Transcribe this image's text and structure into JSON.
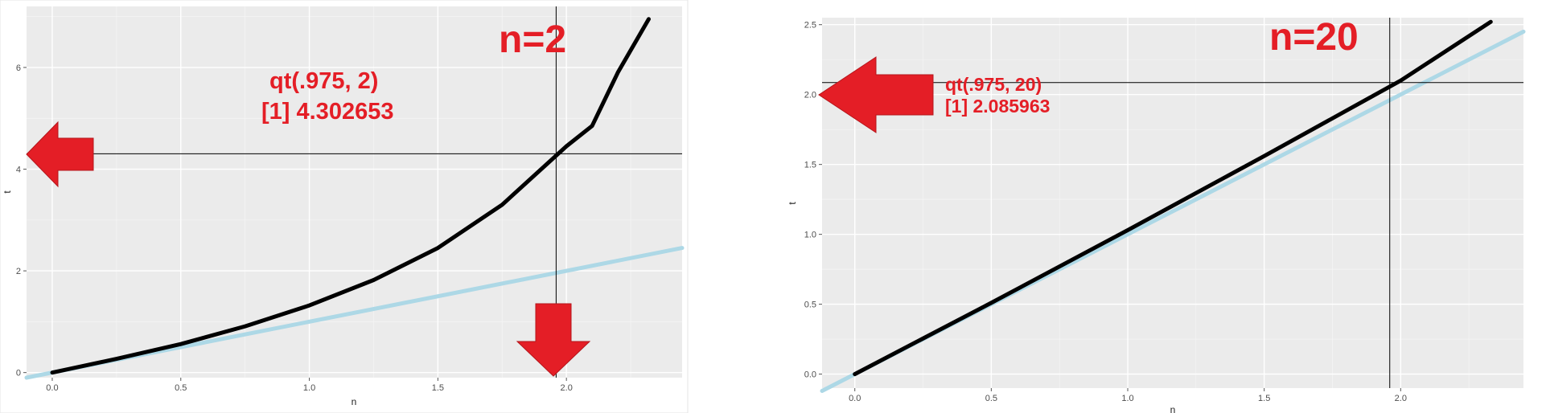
{
  "chart_data": [
    {
      "type": "line",
      "title": "n=2",
      "xlabel": "n",
      "ylabel": "t",
      "xlim": [
        -0.1,
        2.45
      ],
      "ylim": [
        -0.1,
        7.2
      ],
      "x_ticks": [
        0.0,
        0.5,
        1.0,
        1.5,
        2.0
      ],
      "x_tick_labels": [
        "0.0",
        "0.5",
        "1.0",
        "1.5",
        "2.0"
      ],
      "y_ticks": [
        0,
        2,
        4,
        6
      ],
      "y_tick_labels": [
        "0",
        "2",
        "4",
        "6"
      ],
      "grid": true,
      "series": [
        {
          "color": "#000000",
          "x": [
            0.0,
            0.25,
            0.5,
            0.75,
            1.0,
            1.25,
            1.5,
            1.75,
            2.0,
            2.1,
            2.2,
            2.32
          ],
          "y": [
            0.0,
            0.27,
            0.56,
            0.91,
            1.32,
            1.82,
            2.45,
            3.3,
            4.45,
            4.85,
            5.9,
            6.95
          ]
        },
        {
          "color": "#add8e6",
          "x": [
            -0.1,
            2.45
          ],
          "y": [
            -0.1,
            2.45
          ]
        }
      ],
      "reference_lines": {
        "x": 1.96,
        "y": 4.302653
      },
      "annotation": {
        "line1": "qt(.975, 2)",
        "line2": "[1] 4.302653"
      },
      "arrows": [
        "left",
        "down"
      ]
    },
    {
      "type": "line",
      "title": "n=20",
      "xlabel": "n",
      "ylabel": "t",
      "xlim": [
        -0.12,
        2.45
      ],
      "ylim": [
        -0.1,
        2.55
      ],
      "x_ticks": [
        0.0,
        0.5,
        1.0,
        1.5,
        2.0
      ],
      "x_tick_labels": [
        "0.0",
        "0.5",
        "1.0",
        "1.5",
        "2.0"
      ],
      "y_ticks": [
        0.0,
        0.5,
        1.0,
        1.5,
        2.0,
        2.5
      ],
      "y_tick_labels": [
        "0.0",
        "0.5",
        "1.0",
        "1.5",
        "2.0",
        "2.5"
      ],
      "grid": true,
      "series": [
        {
          "color": "#000000",
          "x": [
            0.0,
            0.5,
            1.0,
            1.5,
            2.0,
            2.33
          ],
          "y": [
            0.0,
            0.51,
            1.03,
            1.56,
            2.1,
            2.52
          ]
        },
        {
          "color": "#add8e6",
          "x": [
            -0.12,
            2.45
          ],
          "y": [
            -0.12,
            2.45
          ]
        }
      ],
      "reference_lines": {
        "x": 1.96,
        "y": 2.085963
      },
      "annotation": {
        "line1": "qt(.975, 20)",
        "line2": "[1] 2.085963"
      },
      "arrows": [
        "left"
      ]
    }
  ]
}
